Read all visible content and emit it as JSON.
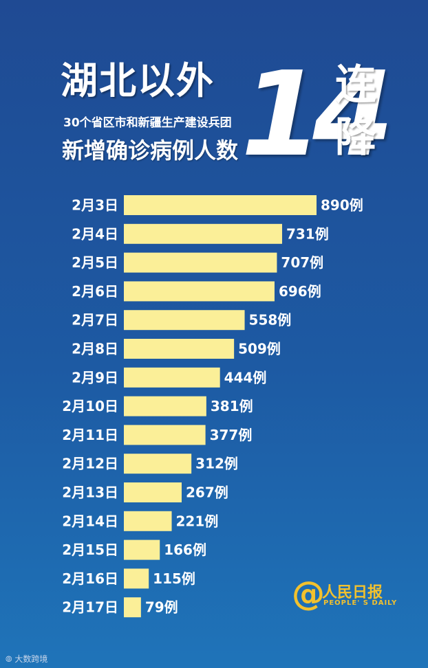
{
  "header": {
    "title_main": "湖北以外",
    "subtitle": "30个省区市和新疆生产建设兵团",
    "subtitle2": "新增确诊病例人数",
    "big_number": "14",
    "big_char_1": "连",
    "big_char_2": "降"
  },
  "chart_data": {
    "type": "bar",
    "orientation": "horizontal",
    "title": "湖北以外30个省区市和新疆生产建设兵团新增确诊病例人数14连降",
    "categories": [
      "2月3日",
      "2月4日",
      "2月5日",
      "2月6日",
      "2月7日",
      "2月8日",
      "2月9日",
      "2月10日",
      "2月11日",
      "2月12日",
      "2月13日",
      "2月14日",
      "2月15日",
      "2月16日",
      "2月17日"
    ],
    "values": [
      890,
      731,
      707,
      696,
      558,
      509,
      444,
      381,
      377,
      312,
      267,
      221,
      166,
      115,
      79
    ],
    "value_labels": [
      "890例",
      "731例",
      "707例",
      "696例",
      "558例",
      "509例",
      "444例",
      "381例",
      "377例",
      "312例",
      "267例",
      "221例",
      "166例",
      "115例",
      "79例"
    ],
    "xlim": [
      0,
      890
    ],
    "bar_color": "#fbef98"
  },
  "logo": {
    "at": "@",
    "cn": "人民日报",
    "en": "PEOPLE' S DAILY",
    "color": "#f2c12e"
  },
  "watermark": "大数跨境"
}
